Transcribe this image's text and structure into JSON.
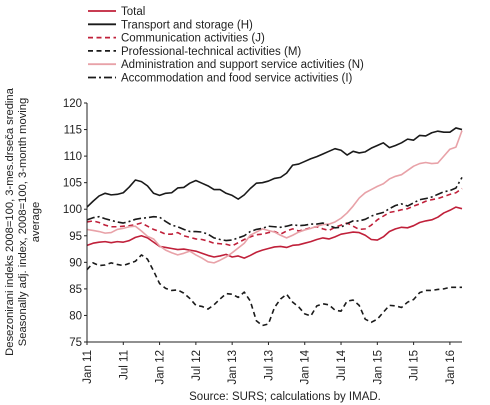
{
  "chart_data": {
    "type": "line",
    "title": "",
    "ylabel_lines": [
      "Desezonirani indeks 2008=100, 3-mes.drseča sredina",
      "Seasonally adj. index, 2008=100, 3-month moving",
      "average"
    ],
    "xlabel": "",
    "x_tick_labels": [
      "Jan 11",
      "Jul 11",
      "Jan 12",
      "Jul 12",
      "Jan 13",
      "Jul 13",
      "Jan 14",
      "Jul 14",
      "Jan 15",
      "Jul 15",
      "Jan 16"
    ],
    "x_start": "2011-01",
    "x_end": "2016-01",
    "frequency": "monthly",
    "ylim": [
      75,
      120
    ],
    "y_ticks": [
      75,
      80,
      85,
      90,
      95,
      100,
      105,
      110,
      115,
      120
    ],
    "grid": false,
    "legend_position": "top",
    "source": "Source: SURS; calculations by IMAD.",
    "series": [
      {
        "name": "Total",
        "color": "#c0203a",
        "dash": "solid",
        "values": [
          93.2,
          93.6,
          93.8,
          93.9,
          93.7,
          93.9,
          93.8,
          94.1,
          94.7,
          95.0,
          94.6,
          93.8,
          93.0,
          92.8,
          92.6,
          92.4,
          92.5,
          92.3,
          92.1,
          91.7,
          91.3,
          91.0,
          91.2,
          91.5,
          91.0,
          91.2,
          90.8,
          91.3,
          91.9,
          92.3,
          92.6,
          92.9,
          93.0,
          92.8,
          93.2,
          93.3,
          93.6,
          93.9,
          94.3,
          94.6,
          94.4,
          94.8,
          95.3,
          95.5,
          95.7,
          95.6,
          95.1,
          94.3,
          94.2,
          94.8,
          95.8,
          96.3,
          96.6,
          96.5,
          96.9,
          97.5,
          97.8,
          98.0,
          98.5,
          99.3,
          99.8,
          100.4,
          100.1
        ]
      },
      {
        "name": "Transport and storage (H)",
        "color": "#1a1a1a",
        "dash": "solid",
        "values": [
          100.4,
          101.5,
          102.5,
          103.0,
          102.7,
          102.8,
          103.1,
          104.2,
          105.5,
          105.2,
          104.4,
          103.0,
          102.6,
          103.0,
          103.1,
          104.0,
          104.1,
          104.9,
          105.4,
          104.9,
          104.4,
          103.7,
          103.7,
          103.0,
          102.6,
          101.9,
          102.7,
          103.9,
          104.9,
          105.0,
          105.3,
          105.8,
          106.0,
          106.8,
          108.3,
          108.5,
          109.0,
          109.5,
          109.9,
          110.4,
          110.9,
          111.4,
          111.1,
          110.2,
          110.9,
          110.6,
          110.8,
          111.5,
          112.0,
          112.5,
          111.6,
          112.0,
          112.5,
          113.2,
          113.0,
          113.9,
          113.8,
          114.4,
          114.7,
          114.5,
          114.5,
          115.3,
          115.0
        ]
      },
      {
        "name": "Communication activities (J)",
        "color": "#c0203a",
        "dash": "dashed",
        "values": [
          97.6,
          97.8,
          97.5,
          97.0,
          96.7,
          96.7,
          96.8,
          96.9,
          97.1,
          97.4,
          96.8,
          96.2,
          95.8,
          95.3,
          95.3,
          95.6,
          95.0,
          94.7,
          94.4,
          94.3,
          94.0,
          93.6,
          93.5,
          93.4,
          93.1,
          93.7,
          94.3,
          94.8,
          95.2,
          95.3,
          95.6,
          95.8,
          95.3,
          95.9,
          96.3,
          95.9,
          96.2,
          96.5,
          96.7,
          96.3,
          96.0,
          96.6,
          97.0,
          97.4,
          96.8,
          96.2,
          96.3,
          97.0,
          98.0,
          98.7,
          99.4,
          99.6,
          99.9,
          100.1,
          100.6,
          101.0,
          101.5,
          101.8,
          102.0,
          102.4,
          102.8,
          103.1,
          103.9
        ]
      },
      {
        "name": "Professional-technical activities (M)",
        "color": "#1a1a1a",
        "dash": "dashed",
        "values": [
          88.6,
          89.9,
          89.4,
          89.5,
          89.9,
          89.6,
          89.4,
          89.8,
          90.2,
          91.4,
          90.6,
          88.4,
          86.0,
          85.1,
          84.7,
          84.8,
          84.2,
          83.2,
          81.9,
          81.7,
          81.2,
          82.0,
          83.1,
          84.1,
          84.0,
          83.4,
          84.4,
          82.7,
          79.0,
          78.1,
          78.4,
          81.5,
          83.1,
          84.0,
          82.5,
          81.6,
          80.3,
          79.9,
          81.8,
          82.2,
          82.0,
          81.0,
          80.8,
          82.7,
          82.9,
          81.9,
          79.3,
          78.7,
          79.3,
          80.6,
          81.9,
          81.8,
          81.5,
          82.5,
          83.0,
          84.3,
          84.7,
          84.7,
          84.9,
          85.0,
          85.3,
          85.3,
          85.3
        ]
      },
      {
        "name": "Administration and support service activities (N)",
        "color": "#e8a2a8",
        "dash": "solid",
        "values": [
          96.2,
          96.0,
          95.8,
          95.5,
          95.6,
          96.2,
          96.4,
          96.7,
          96.8,
          95.9,
          94.9,
          94.4,
          93.1,
          92.3,
          91.8,
          91.4,
          91.7,
          92.1,
          91.4,
          90.8,
          90.1,
          89.9,
          90.4,
          91.0,
          91.8,
          92.7,
          93.6,
          95.1,
          95.7,
          96.3,
          96.0,
          95.7,
          95.1,
          94.6,
          95.1,
          95.7,
          96.1,
          96.4,
          96.8,
          97.1,
          97.2,
          97.6,
          98.3,
          99.3,
          100.6,
          102.1,
          103.1,
          103.7,
          104.3,
          104.8,
          105.7,
          106.2,
          106.5,
          107.3,
          108.1,
          108.6,
          108.8,
          108.6,
          108.7,
          110.0,
          111.3,
          111.7,
          114.8
        ]
      },
      {
        "name": "Accommodation and food service activities (I)",
        "color": "#1a1a1a",
        "dash": "dashdot",
        "values": [
          98.0,
          98.4,
          98.6,
          98.2,
          97.9,
          97.6,
          97.4,
          97.7,
          98.1,
          98.3,
          98.4,
          98.6,
          98.5,
          97.7,
          97.0,
          96.7,
          96.2,
          95.8,
          95.8,
          95.7,
          95.3,
          94.6,
          94.3,
          94.1,
          94.2,
          94.6,
          95.0,
          95.8,
          96.2,
          96.4,
          96.8,
          96.7,
          96.6,
          96.8,
          97.1,
          96.9,
          97.0,
          97.2,
          97.2,
          97.4,
          96.9,
          96.5,
          96.6,
          97.3,
          97.8,
          97.8,
          98.1,
          98.7,
          99.1,
          99.4,
          100.1,
          100.7,
          101.0,
          100.6,
          101.2,
          101.8,
          102.0,
          102.3,
          102.8,
          103.3,
          103.5,
          104.0,
          106.0
        ]
      }
    ]
  }
}
